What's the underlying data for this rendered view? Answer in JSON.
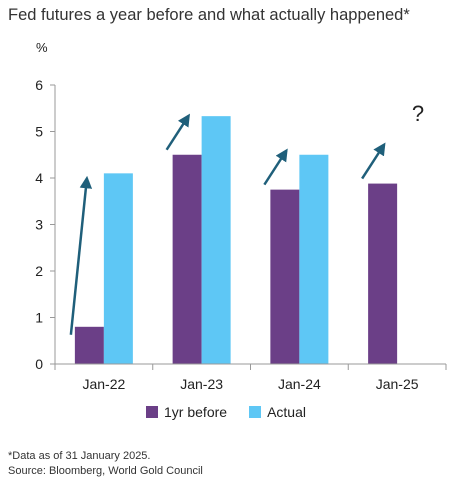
{
  "title": "Fed futures a year before and what actually happened*",
  "footnote": "*Data as of 31 January 2025.",
  "source": "Source: Bloomberg, World Gold Council",
  "colors": {
    "before": "#6b3f87",
    "actual": "#5ec7f5",
    "arrow": "#1f5f7a"
  },
  "chart_data": {
    "type": "bar",
    "categories": [
      "Jan-22",
      "Jan-23",
      "Jan-24",
      "Jan-25"
    ],
    "series": [
      {
        "name": "1yr before",
        "values": [
          0.8,
          4.5,
          3.75,
          3.88
        ]
      },
      {
        "name": "Actual",
        "values": [
          4.1,
          5.33,
          4.5,
          null
        ]
      }
    ],
    "ylabel": "%",
    "ylim": [
      0,
      6
    ],
    "yticks": [
      "0",
      "1",
      "2",
      "3",
      "4",
      "5",
      "6"
    ],
    "annotation": "?"
  }
}
